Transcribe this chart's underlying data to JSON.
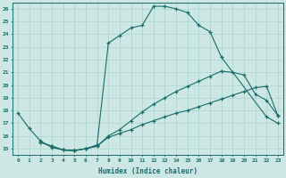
{
  "xlabel": "Humidex (Indice chaleur)",
  "xlim": [
    -0.5,
    23.5
  ],
  "ylim": [
    14.5,
    26.5
  ],
  "xticks": [
    0,
    1,
    2,
    3,
    4,
    5,
    6,
    7,
    8,
    9,
    10,
    11,
    12,
    13,
    14,
    15,
    16,
    17,
    18,
    19,
    20,
    21,
    22,
    23
  ],
  "yticks": [
    15,
    16,
    17,
    18,
    19,
    20,
    21,
    22,
    23,
    24,
    25,
    26
  ],
  "bg_color": "#cde8e4",
  "line_color": "#1a6b6b",
  "grid_color": "#b0d8d2",
  "curve1_x": [
    0,
    1,
    2,
    3,
    4,
    5,
    6,
    7,
    8,
    9,
    10,
    11,
    12,
    13,
    14,
    15,
    16,
    17,
    18,
    22,
    23
  ],
  "curve1_y": [
    17.8,
    16.6,
    15.6,
    15.1,
    14.9,
    14.85,
    15.0,
    15.3,
    23.3,
    23.9,
    24.5,
    24.7,
    26.2,
    26.2,
    26.0,
    25.7,
    24.7,
    24.2,
    22.2,
    17.5,
    17.0
  ],
  "curve2_x": [
    2,
    3,
    4,
    5,
    6,
    7,
    8,
    9,
    10,
    11,
    12,
    13,
    14,
    15,
    16,
    17,
    18,
    19,
    20,
    21,
    22,
    23
  ],
  "curve2_y": [
    15.5,
    15.2,
    14.9,
    14.85,
    15.0,
    15.2,
    16.0,
    16.5,
    17.2,
    17.9,
    18.5,
    19.0,
    19.5,
    19.9,
    20.3,
    20.7,
    21.1,
    21.0,
    20.8,
    19.3,
    18.8,
    17.6
  ],
  "curve3_x": [
    2,
    3,
    4,
    5,
    6,
    7,
    8,
    9,
    10,
    11,
    12,
    13,
    14,
    15,
    16,
    17,
    18,
    19,
    20,
    21,
    22,
    23
  ],
  "curve3_y": [
    15.5,
    15.2,
    14.9,
    14.85,
    15.0,
    15.2,
    15.9,
    16.2,
    16.5,
    16.9,
    17.2,
    17.5,
    17.8,
    18.0,
    18.3,
    18.6,
    18.9,
    19.2,
    19.5,
    19.8,
    19.9,
    17.6
  ]
}
